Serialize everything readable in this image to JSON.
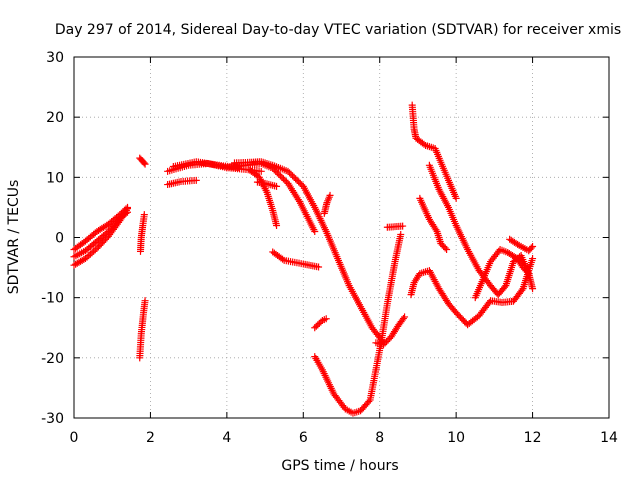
{
  "chart_data": {
    "type": "scatter",
    "title": "Day 297 of 2014, Sidereal Day-to-day VTEC variation (SDTVAR) for receiver xmis",
    "xlabel": "GPS time / hours",
    "ylabel": "SDTVAR / TECUs",
    "xlim": [
      0,
      14
    ],
    "ylim": [
      -30,
      30
    ],
    "x_ticks": [
      "0",
      "2",
      "4",
      "6",
      "8",
      "10",
      "12",
      "14"
    ],
    "y_ticks": [
      "30",
      "20",
      "10",
      "0",
      "-10",
      "-20",
      "-30"
    ],
    "x_tick_values": [
      0,
      2,
      4,
      6,
      8,
      10,
      12,
      14
    ],
    "y_tick_values": [
      30,
      20,
      10,
      0,
      -10,
      -20,
      -30
    ],
    "grid": true,
    "marker": "plus",
    "color": "#ff0000",
    "series": [
      {
        "points": [
          [
            0.0,
            -4.6
          ],
          [
            0.3,
            -3.5
          ],
          [
            0.6,
            -1.8
          ],
          [
            0.9,
            0.2
          ],
          [
            1.2,
            2.8
          ],
          [
            1.4,
            4.8
          ]
        ]
      },
      {
        "points": [
          [
            0.0,
            -2.0
          ],
          [
            0.3,
            -0.6
          ],
          [
            0.6,
            1.0
          ],
          [
            0.9,
            2.2
          ],
          [
            1.2,
            3.8
          ],
          [
            1.4,
            5.0
          ]
        ]
      },
      {
        "points": [
          [
            0.0,
            -3.2
          ],
          [
            0.3,
            -2.2
          ],
          [
            0.6,
            -0.6
          ],
          [
            0.9,
            1.0
          ],
          [
            1.2,
            3.2
          ],
          [
            1.4,
            4.2
          ]
        ]
      },
      {
        "points": [
          [
            1.72,
            -20.0
          ],
          [
            1.76,
            -16.0
          ],
          [
            1.82,
            -12.5
          ],
          [
            1.86,
            -10.5
          ]
        ]
      },
      {
        "points": [
          [
            1.74,
            -2.3
          ],
          [
            1.76,
            0.0
          ],
          [
            1.8,
            2.0
          ],
          [
            1.84,
            3.8
          ]
        ]
      },
      {
        "points": [
          [
            1.72,
            13.2
          ],
          [
            1.78,
            12.8
          ],
          [
            1.86,
            12.2
          ]
        ]
      },
      {
        "points": [
          [
            2.45,
            8.8
          ],
          [
            2.8,
            9.3
          ],
          [
            3.2,
            9.5
          ]
        ]
      },
      {
        "points": [
          [
            2.45,
            11.0
          ],
          [
            3.0,
            12.0
          ],
          [
            3.5,
            12.3
          ],
          [
            4.0,
            11.6
          ],
          [
            4.5,
            11.3
          ],
          [
            4.9,
            11.0
          ]
        ]
      },
      {
        "points": [
          [
            2.6,
            11.8
          ],
          [
            3.2,
            12.6
          ],
          [
            3.8,
            12.0
          ],
          [
            4.3,
            11.6
          ]
        ]
      },
      {
        "points": [
          [
            4.0,
            11.6
          ],
          [
            4.5,
            12.0
          ],
          [
            4.9,
            12.3
          ],
          [
            5.2,
            11.5
          ],
          [
            5.6,
            9.0
          ],
          [
            5.9,
            6.0
          ],
          [
            6.1,
            3.5
          ],
          [
            6.3,
            1.0
          ]
        ]
      },
      {
        "points": [
          [
            4.2,
            12.4
          ],
          [
            4.6,
            12.5
          ],
          [
            4.9,
            12.6
          ],
          [
            5.2,
            12.0
          ],
          [
            5.6,
            11.0
          ],
          [
            6.0,
            8.5
          ],
          [
            6.3,
            5.0
          ],
          [
            6.6,
            1.0
          ],
          [
            6.9,
            -3.5
          ],
          [
            7.2,
            -8.0
          ],
          [
            7.5,
            -11.5
          ],
          [
            7.8,
            -15.0
          ],
          [
            8.1,
            -17.5
          ]
        ]
      },
      {
        "points": [
          [
            4.6,
            11.2
          ],
          [
            4.85,
            10.0
          ],
          [
            5.05,
            7.5
          ],
          [
            5.2,
            4.5
          ],
          [
            5.3,
            2.0
          ]
        ]
      },
      {
        "points": [
          [
            4.8,
            9.2
          ],
          [
            5.0,
            9.0
          ],
          [
            5.3,
            8.5
          ]
        ]
      },
      {
        "points": [
          [
            5.2,
            -2.4
          ],
          [
            5.5,
            -3.8
          ],
          [
            6.0,
            -4.4
          ],
          [
            6.4,
            -4.9
          ]
        ]
      },
      {
        "points": [
          [
            6.3,
            -15.0
          ],
          [
            6.5,
            -13.8
          ],
          [
            6.6,
            -13.5
          ]
        ]
      },
      {
        "points": [
          [
            6.55,
            4.0
          ],
          [
            6.62,
            5.8
          ],
          [
            6.7,
            7.0
          ]
        ]
      },
      {
        "points": [
          [
            6.3,
            -19.8
          ],
          [
            6.5,
            -22.0
          ],
          [
            6.8,
            -26.0
          ],
          [
            7.1,
            -28.5
          ],
          [
            7.3,
            -29.2
          ],
          [
            7.5,
            -28.8
          ],
          [
            7.75,
            -27.0
          ],
          [
            7.9,
            -22.0
          ],
          [
            8.05,
            -17.0
          ],
          [
            8.2,
            -11.0
          ],
          [
            8.4,
            -4.0
          ],
          [
            8.55,
            0.5
          ]
        ]
      },
      {
        "points": [
          [
            7.9,
            -17.5
          ],
          [
            8.1,
            -17.8
          ],
          [
            8.3,
            -16.5
          ],
          [
            8.5,
            -14.5
          ],
          [
            8.65,
            -13.2
          ]
        ]
      },
      {
        "points": [
          [
            8.2,
            1.7
          ],
          [
            8.4,
            1.8
          ],
          [
            8.6,
            1.9
          ]
        ]
      },
      {
        "points": [
          [
            8.82,
            -9.5
          ],
          [
            8.9,
            -7.5
          ],
          [
            9.05,
            -6.0
          ],
          [
            9.3,
            -5.5
          ],
          [
            9.55,
            -8.5
          ],
          [
            9.8,
            -11.0
          ],
          [
            10.0,
            -12.5
          ],
          [
            10.3,
            -14.5
          ],
          [
            10.6,
            -13.0
          ],
          [
            10.9,
            -10.5
          ],
          [
            11.2,
            -10.8
          ],
          [
            11.5,
            -10.6
          ],
          [
            11.75,
            -8.5
          ],
          [
            12.0,
            -3.5
          ]
        ]
      },
      {
        "points": [
          [
            8.85,
            22.0
          ],
          [
            8.9,
            18.0
          ],
          [
            8.95,
            16.5
          ],
          [
            9.2,
            15.3
          ],
          [
            9.45,
            14.8
          ],
          [
            9.6,
            12.5
          ],
          [
            9.8,
            9.5
          ],
          [
            10.0,
            6.5
          ]
        ]
      },
      {
        "points": [
          [
            9.05,
            6.5
          ],
          [
            9.3,
            3.0
          ],
          [
            9.5,
            1.0
          ],
          [
            9.6,
            -1.0
          ],
          [
            9.75,
            -2.0
          ]
        ]
      },
      {
        "points": [
          [
            9.3,
            12.0
          ],
          [
            9.55,
            8.0
          ],
          [
            9.8,
            5.0
          ],
          [
            10.0,
            2.0
          ],
          [
            10.3,
            -2.0
          ],
          [
            10.6,
            -5.5
          ],
          [
            10.9,
            -8.0
          ],
          [
            11.1,
            -9.5
          ],
          [
            11.3,
            -8.0
          ],
          [
            11.5,
            -4.0
          ],
          [
            11.7,
            -3.0
          ],
          [
            11.9,
            -6.0
          ],
          [
            12.0,
            -8.5
          ]
        ]
      },
      {
        "points": [
          [
            10.5,
            -10.0
          ],
          [
            10.7,
            -7.0
          ],
          [
            10.9,
            -4.0
          ],
          [
            11.15,
            -2.0
          ],
          [
            11.35,
            -2.5
          ],
          [
            11.6,
            -3.5
          ],
          [
            11.75,
            -5.0
          ],
          [
            11.9,
            -6.0
          ]
        ]
      },
      {
        "points": [
          [
            11.4,
            -0.3
          ],
          [
            11.65,
            -1.3
          ],
          [
            11.9,
            -2.2
          ],
          [
            12.0,
            -1.5
          ]
        ]
      }
    ]
  }
}
